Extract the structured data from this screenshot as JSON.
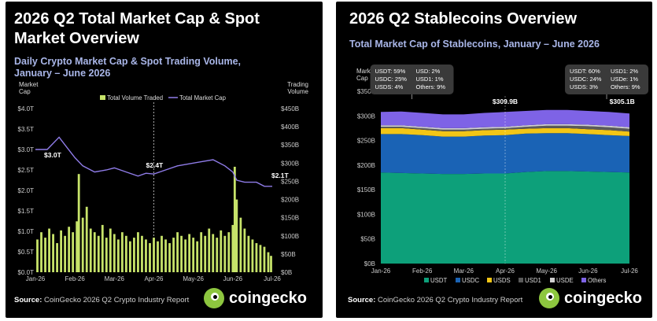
{
  "left": {
    "title_line1": "2026 Q2 Total Market Cap & Spot",
    "title_line2": "Market Overview",
    "subtitle_line1": "Daily Crypto Market Cap & Spot Trading Volume,",
    "subtitle_line2": "January – June 2026",
    "source_label": "Source:",
    "source_text": "CoinGecko 2026 Q2 Crypto Industry Report",
    "brand": "coingecko",
    "logo_icon": "gecko-logo-icon"
  },
  "right": {
    "title": "2026 Q2 Stablecoins Overview",
    "subtitle": "Total Market Cap of Stablecoins, January – June 2026",
    "source_label": "Source:",
    "source_text": "CoinGecko 2026 Q2 Crypto Industry Report",
    "brand": "coingecko",
    "logo_icon": "gecko-logo-icon"
  },
  "chart_data": [
    {
      "type": "bar+line",
      "title": "Daily Crypto Market Cap & Spot Trading Volume, January – June 2026",
      "y_left_label": [
        "Market",
        "Cap"
      ],
      "y_right_label": [
        "Trading",
        "Volume"
      ],
      "y_left_ticks": [
        "$0.0T",
        "$0.5T",
        "$1.0T",
        "$1.5T",
        "$2.0T",
        "$2.5T",
        "$3.0T",
        "$3.5T",
        "$4.0T"
      ],
      "y_right_ticks": [
        "$0B",
        "$50B",
        "$100B",
        "$150B",
        "$200B",
        "$250B",
        "$300B",
        "$350B",
        "$400B",
        "$450B"
      ],
      "x_ticks": [
        "Jan-26",
        "Feb-26",
        "Mar-26",
        "Apr-26",
        "May-26",
        "Jun-26",
        "Jul-26"
      ],
      "ylim_left": [
        0,
        4.0
      ],
      "ylim_right": [
        0,
        450
      ],
      "legend": [
        "Total Volume Traded",
        "Total Market Cap"
      ],
      "legend_position": "top-right",
      "colors": {
        "volume": "#c7e36a",
        "market_cap": "#8f7ce8"
      },
      "annotations": [
        {
          "label": "$3.0T",
          "month": 0.3
        },
        {
          "label": "$2.4T",
          "month": 3.0
        },
        {
          "label": "$2.1T",
          "month": 5.9
        }
      ],
      "market_cap_series": {
        "name": "Total Market Cap",
        "month": [
          0,
          0.3,
          0.6,
          0.8,
          1.0,
          1.2,
          1.5,
          1.8,
          2.0,
          2.3,
          2.6,
          2.8,
          3.0,
          3.3,
          3.6,
          3.9,
          4.2,
          4.5,
          4.8,
          5.0,
          5.1,
          5.3,
          5.6,
          5.8,
          6.0
        ],
        "value_trillion": [
          3.0,
          3.0,
          3.3,
          3.05,
          2.8,
          2.6,
          2.45,
          2.5,
          2.55,
          2.45,
          2.35,
          2.42,
          2.4,
          2.5,
          2.6,
          2.65,
          2.7,
          2.75,
          2.6,
          2.45,
          2.25,
          2.2,
          2.2,
          2.1,
          2.1
        ]
      },
      "volume_series": {
        "name": "Total Volume Traded",
        "month": [
          0.05,
          0.15,
          0.25,
          0.35,
          0.45,
          0.55,
          0.65,
          0.75,
          0.85,
          0.95,
          1.05,
          1.1,
          1.2,
          1.3,
          1.4,
          1.5,
          1.6,
          1.7,
          1.8,
          1.9,
          2.0,
          2.1,
          2.2,
          2.3,
          2.4,
          2.5,
          2.6,
          2.7,
          2.8,
          2.9,
          3.0,
          3.1,
          3.2,
          3.3,
          3.4,
          3.5,
          3.6,
          3.7,
          3.8,
          3.9,
          4.0,
          4.1,
          4.2,
          4.3,
          4.4,
          4.5,
          4.6,
          4.7,
          4.8,
          4.9,
          5.0,
          5.05,
          5.1,
          5.2,
          5.3,
          5.4,
          5.5,
          5.6,
          5.7,
          5.8,
          5.9,
          5.97
        ],
        "value_billion": [
          90,
          110,
          95,
          120,
          105,
          80,
          115,
          100,
          125,
          110,
          140,
          270,
          150,
          180,
          120,
          110,
          100,
          130,
          95,
          120,
          105,
          90,
          110,
          100,
          85,
          95,
          110,
          100,
          90,
          80,
          95,
          85,
          100,
          90,
          80,
          95,
          110,
          100,
          90,
          105,
          95,
          85,
          110,
          100,
          120,
          105,
          95,
          115,
          100,
          110,
          130,
          290,
          200,
          150,
          120,
          100,
          90,
          80,
          75,
          70,
          55,
          45
        ]
      }
    },
    {
      "type": "area",
      "stacked": true,
      "title": "Total Market Cap of Stablecoins, January – June 2026",
      "y_label": [
        "Market",
        "Cap"
      ],
      "y_ticks": [
        "$0B",
        "$50B",
        "$100B",
        "$150B",
        "$200B",
        "$250B",
        "$300B",
        "$350B"
      ],
      "x_ticks": [
        "Jan-26",
        "Feb-26",
        "Mar-26",
        "Apr-26",
        "May-26",
        "Jun-26",
        "Jul-26"
      ],
      "ylim": [
        0,
        350
      ],
      "legend_position": "bottom",
      "month": [
        0,
        0.5,
        1,
        1.5,
        2,
        2.5,
        3,
        3.5,
        4,
        4.5,
        5,
        5.5,
        6
      ],
      "series": [
        {
          "name": "USDT",
          "color": "#0da07a",
          "values": [
            185,
            184,
            183,
            182,
            182,
            183,
            183,
            186,
            188,
            188,
            187,
            186,
            185
          ]
        },
        {
          "name": "USDC",
          "color": "#1a63b5",
          "values": [
            78,
            79,
            78,
            76,
            76,
            77,
            78,
            78,
            77,
            77,
            76,
            75,
            74
          ]
        },
        {
          "name": "USDS",
          "color": "#f3c616",
          "values": [
            12,
            12,
            11,
            11,
            11,
            11,
            11,
            10,
            10,
            10,
            10,
            10,
            9
          ]
        },
        {
          "name": "USD1",
          "color": "#5a5a5a",
          "values": [
            3,
            3,
            3,
            3,
            3,
            3,
            3,
            4,
            5,
            5,
            6,
            6,
            6
          ]
        },
        {
          "name": "USDE",
          "color": "#d0d0d0",
          "values": [
            3,
            3,
            3,
            3,
            3,
            3,
            3,
            3,
            3,
            3,
            3,
            3,
            3
          ]
        },
        {
          "name": "Others",
          "color": "#7e63e6",
          "values": [
            27,
            28,
            28,
            28,
            28,
            29,
            30,
            29,
            29,
            29,
            28,
            28,
            28
          ]
        }
      ],
      "callouts": [
        {
          "month": 0.75,
          "lines": [
            [
              "USDT: 59%",
              "USD: 2%"
            ],
            [
              "USDC: 25%",
              "USD1: 1%"
            ],
            [
              "USDS: 4%",
              "Others: 9%"
            ]
          ]
        },
        {
          "month": 5.45,
          "lines": [
            [
              "USDT: 60%",
              "USD1: 2%"
            ],
            [
              "USDC: 24%",
              "USDe: 1%"
            ],
            [
              "USDS: 3%",
              "Others: 9%"
            ]
          ]
        }
      ],
      "annotations": [
        {
          "label": "$309.9B",
          "month": 3.0
        },
        {
          "label": "$305.1B",
          "month": 5.9
        }
      ]
    }
  ]
}
